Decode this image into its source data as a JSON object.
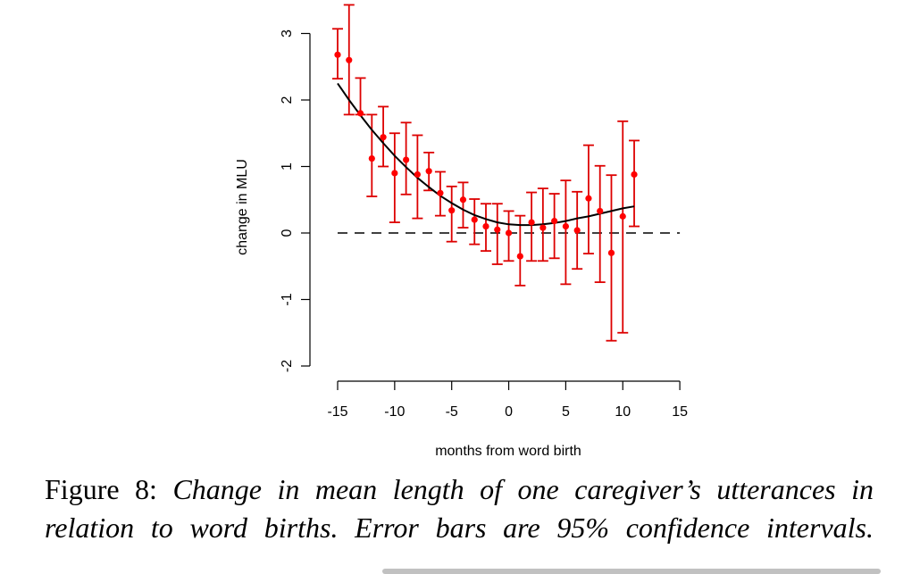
{
  "chart_data": {
    "type": "scatter",
    "xlabel": "months from word birth",
    "ylabel": "change in MLU",
    "xlim": [
      -15,
      15
    ],
    "ylim": [
      -2,
      3
    ],
    "x_ticks": [
      -15,
      -10,
      -5,
      0,
      5,
      10,
      15
    ],
    "y_ticks": [
      -2,
      -1,
      0,
      1,
      2,
      3
    ],
    "reference_line": {
      "y": 0,
      "style": "dashed",
      "color": "#000000"
    },
    "points_color": "#ff0000",
    "errorbar_color": "#dd0000",
    "points": [
      {
        "x": -15,
        "y": 2.68,
        "lo": 2.32,
        "hi": 3.07
      },
      {
        "x": -14,
        "y": 2.6,
        "lo": 1.78,
        "hi": 3.43
      },
      {
        "x": -13,
        "y": 1.8,
        "lo": 1.78,
        "hi": 2.33
      },
      {
        "x": -12,
        "y": 1.12,
        "lo": 0.55,
        "hi": 1.78
      },
      {
        "x": -11,
        "y": 1.44,
        "lo": 1.0,
        "hi": 1.9
      },
      {
        "x": -10,
        "y": 0.9,
        "lo": 0.16,
        "hi": 1.5
      },
      {
        "x": -9,
        "y": 1.1,
        "lo": 0.58,
        "hi": 1.66
      },
      {
        "x": -8,
        "y": 0.88,
        "lo": 0.22,
        "hi": 1.47
      },
      {
        "x": -7,
        "y": 0.93,
        "lo": 0.64,
        "hi": 1.21
      },
      {
        "x": -6,
        "y": 0.6,
        "lo": 0.26,
        "hi": 0.92
      },
      {
        "x": -5,
        "y": 0.34,
        "lo": -0.13,
        "hi": 0.7
      },
      {
        "x": -4,
        "y": 0.5,
        "lo": 0.08,
        "hi": 0.76
      },
      {
        "x": -3,
        "y": 0.2,
        "lo": -0.17,
        "hi": 0.51
      },
      {
        "x": -2,
        "y": 0.1,
        "lo": -0.27,
        "hi": 0.44
      },
      {
        "x": -1,
        "y": 0.05,
        "lo": -0.47,
        "hi": 0.44
      },
      {
        "x": 0,
        "y": 0.0,
        "lo": -0.42,
        "hi": 0.33
      },
      {
        "x": 1,
        "y": -0.35,
        "lo": -0.79,
        "hi": 0.26
      },
      {
        "x": 2,
        "y": 0.16,
        "lo": -0.42,
        "hi": 0.61
      },
      {
        "x": 3,
        "y": 0.08,
        "lo": -0.42,
        "hi": 0.67
      },
      {
        "x": 4,
        "y": 0.18,
        "lo": -0.38,
        "hi": 0.59
      },
      {
        "x": 5,
        "y": 0.1,
        "lo": -0.77,
        "hi": 0.79
      },
      {
        "x": 6,
        "y": 0.04,
        "lo": -0.54,
        "hi": 0.62
      },
      {
        "x": 7,
        "y": 0.52,
        "lo": -0.31,
        "hi": 1.32
      },
      {
        "x": 8,
        "y": 0.33,
        "lo": -0.74,
        "hi": 1.01
      },
      {
        "x": 9,
        "y": -0.3,
        "lo": -1.62,
        "hi": 0.87
      },
      {
        "x": 10,
        "y": 0.25,
        "lo": -1.5,
        "hi": 1.68
      },
      {
        "x": 11,
        "y": 0.88,
        "lo": 0.1,
        "hi": 1.39
      }
    ],
    "fit_line": {
      "x": [
        -15,
        -14,
        -13,
        -12,
        -11,
        -10,
        -9,
        -8,
        -7,
        -6,
        -5,
        -4,
        -3,
        -2,
        -1,
        0,
        1,
        2,
        3,
        4,
        5,
        6,
        7,
        8,
        9,
        10,
        11
      ],
      "y": [
        2.25,
        2.0,
        1.77,
        1.55,
        1.35,
        1.16,
        0.99,
        0.83,
        0.69,
        0.56,
        0.45,
        0.35,
        0.27,
        0.21,
        0.16,
        0.13,
        0.12,
        0.12,
        0.13,
        0.15,
        0.18,
        0.22,
        0.25,
        0.29,
        0.33,
        0.37,
        0.4
      ],
      "color": "#000000"
    }
  },
  "caption": {
    "label": "Figure 8:",
    "text": "Change in mean length of one caregiver’s utterances in relation to word births. Error bars are 95% confidence intervals."
  }
}
